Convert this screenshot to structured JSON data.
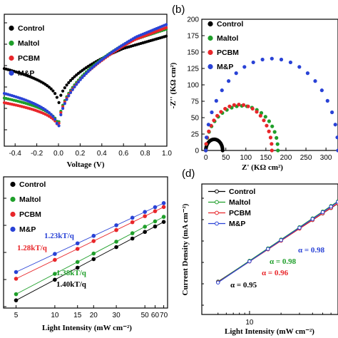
{
  "panels": {
    "a": {
      "letter": ""
    },
    "b": {
      "letter": "(b)"
    },
    "c": {
      "letter": ""
    },
    "d": {
      "letter": "(d)"
    }
  },
  "colors": {
    "Control": "#000000",
    "Maltol": "#1f9f2a",
    "PCBM": "#e8262a",
    "M&P": "#2942d6"
  },
  "chart_data": [
    {
      "id": "a",
      "type": "scatter",
      "title": "",
      "xlabel": "Voltage (V)",
      "ylabel": "",
      "xlim": [
        -0.5,
        1.0
      ],
      "y_scale": "log",
      "x_ticks": [
        "-0.4",
        "-0.2",
        "0.0",
        "0.2",
        "0.4",
        "0.6",
        "0.8",
        "1.0"
      ],
      "legend": [
        "Control",
        "Maltol",
        "PCBM",
        "M&P"
      ],
      "legend_position": "top-left",
      "series": [
        {
          "name": "Control",
          "min_log": -3.6,
          "left_log": -1.0,
          "right_log": 1.1,
          "knee": 0.6
        },
        {
          "name": "Maltol",
          "min_log": -5.0,
          "left_log": -2.9,
          "right_log": 1.55,
          "knee": 0.65
        },
        {
          "name": "PCBM",
          "min_log": -5.1,
          "left_log": -3.2,
          "right_log": 1.65,
          "knee": 0.7
        },
        {
          "name": "M&P",
          "min_log": -5.3,
          "left_log": -2.6,
          "right_log": 1.85,
          "knee": 0.72
        }
      ]
    },
    {
      "id": "b",
      "type": "scatter",
      "title": "",
      "xlabel": "Z' (KΩ cm²)",
      "ylabel": "-Z'' (KΩ cm²)",
      "xlim": [
        -10,
        330
      ],
      "ylim": [
        0,
        200
      ],
      "x_ticks": [
        "0",
        "50",
        "100",
        "150",
        "200",
        "250",
        "300"
      ],
      "y_ticks": [
        "0",
        "25",
        "50",
        "75",
        "100",
        "125",
        "150",
        "175",
        "200"
      ],
      "legend": [
        "Control",
        "Maltol",
        "PCBM",
        "M&P"
      ],
      "legend_position": "top-left",
      "series": [
        {
          "name": "Control",
          "x_start": 0,
          "x_end": 42,
          "peak": 17
        },
        {
          "name": "Maltol",
          "x_start": 0,
          "x_end": 180,
          "peak": 68
        },
        {
          "name": "PCBM",
          "x_start": 0,
          "x_end": 165,
          "peak": 70
        },
        {
          "name": "M&P",
          "x_start": 0,
          "x_end": 330,
          "peak": 140
        }
      ]
    },
    {
      "id": "c",
      "type": "scatter",
      "title": "",
      "xlabel": "Light Intensity (mW cm⁻²)",
      "ylabel": "",
      "x_scale": "log",
      "xlim": [
        4,
        75
      ],
      "x_ticks": [
        "5",
        "10",
        "15",
        "20",
        "30",
        "50",
        "60",
        "70"
      ],
      "x_tick_values": [
        5,
        10,
        15,
        20,
        30,
        50,
        60,
        70
      ],
      "legend": [
        "Control",
        "Maltol",
        "PCBM",
        "M&P"
      ],
      "legend_position": "top-left",
      "x": [
        5,
        10,
        15,
        20,
        30,
        40,
        50,
        60,
        70
      ],
      "annotations": [
        {
          "text": "1.23kT/q",
          "series": "M&P"
        },
        {
          "text": "1.28kT/q",
          "series": "PCBM"
        },
        {
          "text": "1.38kT/q",
          "series": "Maltol"
        },
        {
          "text": "1.40kT/q",
          "series": "Control"
        }
      ],
      "series": [
        {
          "name": "Control",
          "slope": 1.4,
          "offset": 0.0
        },
        {
          "name": "Maltol",
          "slope": 1.38,
          "offset": 0.12
        },
        {
          "name": "PCBM",
          "slope": 1.28,
          "offset": 0.42
        },
        {
          "name": "M&P",
          "slope": 1.23,
          "offset": 0.55
        }
      ]
    },
    {
      "id": "d",
      "type": "line",
      "title": "",
      "xlabel": "Light Intensity (mW cm⁻²)",
      "ylabel": "Current Density (mA cm⁻²)",
      "x_scale": "log",
      "y_scale": "log",
      "x_ticks": [
        "10"
      ],
      "legend": [
        "Control",
        "Maltol",
        "PCBM",
        "M&P"
      ],
      "legend_position": "top-left",
      "annotations": [
        {
          "text": "α = 0.98",
          "series": "M&P"
        },
        {
          "text": "α = 0.98",
          "series": "Maltol"
        },
        {
          "text": "α = 0.96",
          "series": "PCBM"
        },
        {
          "text": "α = 0.95",
          "series": "Control"
        }
      ],
      "x": [
        5,
        10,
        15,
        20,
        30,
        40,
        50,
        60,
        70
      ],
      "series": [
        {
          "name": "Control",
          "alpha": 0.95
        },
        {
          "name": "Maltol",
          "alpha": 0.98
        },
        {
          "name": "PCBM",
          "alpha": 0.96
        },
        {
          "name": "M&P",
          "alpha": 0.98
        }
      ]
    }
  ]
}
